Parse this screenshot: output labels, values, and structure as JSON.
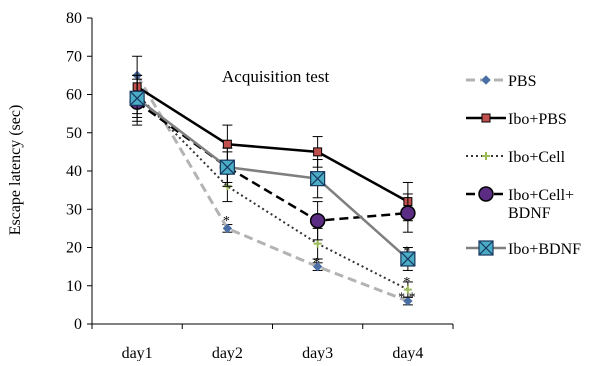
{
  "chart_data": {
    "type": "line",
    "title": "",
    "annotation": "Acquisition test",
    "xlabel": "",
    "ylabel": "Escape latency (sec)",
    "ylim": [
      0,
      80
    ],
    "yticks": [
      0,
      10,
      20,
      30,
      40,
      50,
      60,
      70,
      80
    ],
    "categories": [
      "day1",
      "day2",
      "day3",
      "day4"
    ],
    "grid": false,
    "legend_position": "right",
    "series": [
      {
        "name": "PBS",
        "values": [
          65,
          25,
          15,
          6
        ],
        "errors": [
          0,
          1,
          1,
          1
        ],
        "color": "#b3b3b3",
        "line_style": "dashed",
        "line_width": 3,
        "marker": "diamond",
        "marker_color": "#4a6fa5",
        "marker_size": 4
      },
      {
        "name": "Ibo+PBS",
        "values": [
          62,
          47,
          45,
          32
        ],
        "errors": [
          8,
          5,
          4,
          5
        ],
        "color": "#000000",
        "line_style": "solid",
        "line_width": 2.5,
        "marker": "square",
        "marker_color": "#c0504d",
        "marker_size": 4
      },
      {
        "name": "Ibo+Cell",
        "values": [
          60,
          36,
          21,
          9
        ],
        "errors": [
          5,
          4,
          4,
          2
        ],
        "color": "#333333",
        "line_style": "dotted",
        "line_width": 2,
        "marker": "plus",
        "marker_color": "#9bbb59",
        "marker_size": 4
      },
      {
        "name": "Ibo+Cell+\nBDNF",
        "values": [
          58,
          41,
          27,
          29
        ],
        "errors": [
          6,
          4,
          5,
          5
        ],
        "color": "#000000",
        "line_style": "dashed",
        "line_width": 2.5,
        "marker": "circle",
        "marker_color": "#5b2c83",
        "marker_size": 7
      },
      {
        "name": "Ibo+BDNF",
        "values": [
          59,
          41,
          38,
          17
        ],
        "errors": [
          6,
          5,
          5,
          3
        ],
        "color": "#7f7f7f",
        "line_style": "solid",
        "line_width": 2.5,
        "marker": "xsquare",
        "marker_color": "#4bacc6",
        "marker_size": 7
      }
    ],
    "significance_marks": [
      {
        "category": "day2",
        "value": 28,
        "text": "*"
      },
      {
        "category": "day3",
        "value": 17,
        "text": "*"
      },
      {
        "category": "day4",
        "value": 20,
        "text": "*"
      },
      {
        "category": "day4",
        "value": 12,
        "text": "*"
      },
      {
        "category": "day4",
        "value": 8,
        "text": "* *"
      }
    ]
  }
}
